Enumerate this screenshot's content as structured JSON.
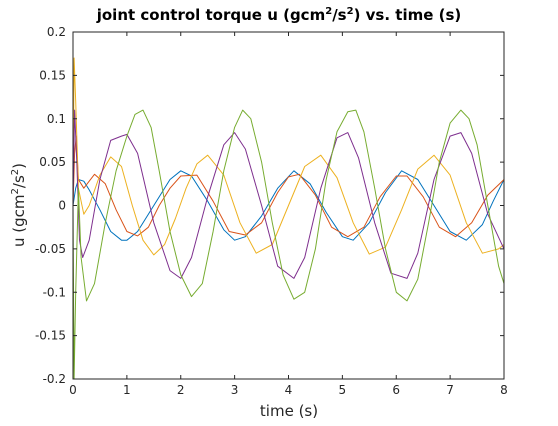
{
  "chart_data": {
    "type": "line",
    "title": {
      "pre": "joint control torque u (gcm",
      "sup1": "2",
      "mid": "/s",
      "sup2": "2",
      "post": ") vs. time (s)"
    },
    "xlabel": "time (s)",
    "ylabel": {
      "pre": "u (gcm",
      "sup1": "2",
      "mid": "/s",
      "sup2": "2",
      "post": ")"
    },
    "xlim": [
      0,
      8
    ],
    "ylim": [
      -0.2,
      0.2
    ],
    "xticks": [
      0,
      1,
      2,
      3,
      4,
      5,
      6,
      7,
      8
    ],
    "yticks": [
      -0.2,
      -0.15,
      -0.1,
      -0.05,
      0,
      0.05,
      0.1,
      0.15,
      0.2
    ],
    "xtick_labels": [
      "0",
      "1",
      "2",
      "3",
      "4",
      "5",
      "6",
      "7",
      "8"
    ],
    "ytick_labels": [
      "-0.2",
      "-0.15",
      "-0.1",
      "-0.05",
      "0",
      "0.05",
      "0.1",
      "0.15",
      "0.2"
    ],
    "grid": false,
    "series": [
      {
        "color": "#0072BD",
        "x": [
          0,
          0.05,
          0.1,
          0.2,
          0.3,
          0.5,
          0.7,
          0.9,
          1.0,
          1.2,
          1.5,
          1.8,
          2.0,
          2.2,
          2.5,
          2.8,
          3.0,
          3.2,
          3.5,
          3.8,
          4.1,
          4.4,
          4.7,
          5.0,
          5.2,
          5.5,
          5.8,
          6.1,
          6.4,
          6.7,
          7.0,
          7.3,
          7.6,
          7.8,
          8.0
        ],
        "y": [
          0.0,
          0.02,
          0.03,
          0.028,
          0.018,
          -0.005,
          -0.03,
          -0.04,
          -0.04,
          -0.03,
          0.0,
          0.03,
          0.04,
          0.034,
          0.005,
          -0.028,
          -0.04,
          -0.036,
          -0.012,
          0.02,
          0.04,
          0.025,
          -0.008,
          -0.036,
          -0.04,
          -0.02,
          0.015,
          0.04,
          0.03,
          0.0,
          -0.03,
          -0.04,
          -0.022,
          0.005,
          0.03
        ]
      },
      {
        "color": "#D95319",
        "x": [
          0,
          0.03,
          0.06,
          0.1,
          0.2,
          0.4,
          0.6,
          0.8,
          1.0,
          1.2,
          1.4,
          1.6,
          1.8,
          2.0,
          2.3,
          2.6,
          2.9,
          3.2,
          3.5,
          3.8,
          4.0,
          4.2,
          4.5,
          4.8,
          5.1,
          5.4,
          5.7,
          6.0,
          6.2,
          6.5,
          6.8,
          7.1,
          7.4,
          7.7,
          8.0
        ],
        "y": [
          0.0,
          0.06,
          0.08,
          0.03,
          0.02,
          0.036,
          0.025,
          -0.005,
          -0.03,
          -0.035,
          -0.025,
          0.0,
          0.02,
          0.034,
          0.035,
          0.005,
          -0.03,
          -0.034,
          -0.02,
          0.015,
          0.033,
          0.036,
          0.012,
          -0.025,
          -0.036,
          -0.025,
          0.01,
          0.034,
          0.034,
          0.01,
          -0.025,
          -0.036,
          -0.02,
          0.012,
          0.03
        ]
      },
      {
        "color": "#EDB120",
        "x": [
          0,
          0.02,
          0.05,
          0.1,
          0.2,
          0.3,
          0.5,
          0.7,
          0.9,
          1.1,
          1.3,
          1.5,
          1.7,
          1.9,
          2.1,
          2.3,
          2.5,
          2.8,
          3.1,
          3.4,
          3.7,
          4.0,
          4.3,
          4.6,
          4.9,
          5.2,
          5.5,
          5.8,
          6.1,
          6.4,
          6.7,
          7.0,
          7.3,
          7.6,
          7.9,
          8.0
        ],
        "y": [
          0.0,
          0.17,
          0.12,
          0.02,
          -0.01,
          0.0,
          0.035,
          0.056,
          0.045,
          0.0,
          -0.04,
          -0.057,
          -0.045,
          -0.015,
          0.02,
          0.048,
          0.058,
          0.035,
          -0.02,
          -0.055,
          -0.045,
          0.0,
          0.045,
          0.058,
          0.032,
          -0.02,
          -0.056,
          -0.048,
          -0.005,
          0.042,
          0.058,
          0.035,
          -0.02,
          -0.055,
          -0.05,
          -0.045
        ]
      },
      {
        "color": "#7E2F8E",
        "x": [
          0,
          0.03,
          0.07,
          0.12,
          0.18,
          0.3,
          0.5,
          0.7,
          0.9,
          1.0,
          1.2,
          1.5,
          1.8,
          2.0,
          2.2,
          2.5,
          2.8,
          3.0,
          3.2,
          3.5,
          3.8,
          4.1,
          4.3,
          4.6,
          4.9,
          5.1,
          5.3,
          5.6,
          5.9,
          6.2,
          6.4,
          6.7,
          7.0,
          7.2,
          7.4,
          7.7,
          8.0
        ],
        "y": [
          0.0,
          0.11,
          0.05,
          -0.04,
          -0.06,
          -0.04,
          0.03,
          0.075,
          0.08,
          0.082,
          0.06,
          -0.02,
          -0.075,
          -0.084,
          -0.06,
          0.01,
          0.07,
          0.084,
          0.065,
          0.0,
          -0.07,
          -0.084,
          -0.06,
          0.02,
          0.078,
          0.084,
          0.055,
          -0.02,
          -0.078,
          -0.084,
          -0.055,
          0.03,
          0.08,
          0.084,
          0.06,
          -0.01,
          -0.05
        ]
      },
      {
        "color": "#77AC30",
        "x": [
          0,
          0.02,
          0.05,
          0.1,
          0.15,
          0.25,
          0.4,
          0.6,
          0.8,
          1.0,
          1.15,
          1.3,
          1.45,
          1.6,
          1.8,
          2.0,
          2.2,
          2.4,
          2.6,
          2.8,
          3.0,
          3.15,
          3.3,
          3.5,
          3.7,
          3.9,
          4.1,
          4.3,
          4.5,
          4.7,
          4.9,
          5.1,
          5.25,
          5.4,
          5.6,
          5.8,
          6.0,
          6.2,
          6.4,
          6.6,
          6.8,
          7.0,
          7.2,
          7.35,
          7.5,
          7.7,
          7.9,
          8.0
        ],
        "y": [
          0.0,
          -0.2,
          -0.1,
          0.02,
          -0.06,
          -0.11,
          -0.09,
          -0.02,
          0.04,
          0.08,
          0.105,
          0.11,
          0.09,
          0.04,
          -0.03,
          -0.08,
          -0.105,
          -0.09,
          -0.03,
          0.04,
          0.09,
          0.11,
          0.1,
          0.05,
          -0.02,
          -0.08,
          -0.108,
          -0.1,
          -0.05,
          0.03,
          0.085,
          0.108,
          0.11,
          0.085,
          0.02,
          -0.05,
          -0.1,
          -0.11,
          -0.085,
          -0.02,
          0.05,
          0.095,
          0.11,
          0.1,
          0.07,
          0.0,
          -0.07,
          -0.09
        ]
      }
    ]
  }
}
